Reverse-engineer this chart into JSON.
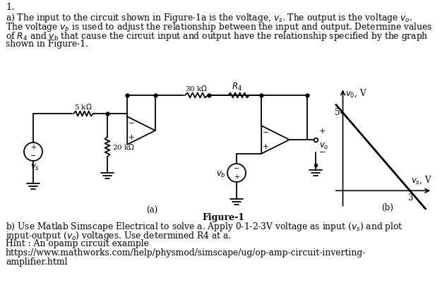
{
  "title_num": "1.",
  "para_a1": "a) The input to the circuit shown in Figure-1a is the voltage, vs. The output is the voltage vo.",
  "para_a2": "The voltage vb is used to adjust the relationship between the input and output. Determine values",
  "para_a3": "of R4 and vb that cause the circuit input and output have the relationship specified by the graph",
  "para_a4": "shown in Figure-1.",
  "figure_caption": "Figure-1",
  "para_b1": "b) Use Matlab Simscape Electrical to solve a. Apply 0-1-2-3V voltage as input (vs) and plot",
  "para_b2": "input-output (vo) voltages. Use determined R4 at a.",
  "para_hint": "Hint : An opamp circuit example",
  "para_url1": "https://www.mathworks.com/help/physmod/simscape/ug/op-amp-circuit-inverting-",
  "para_url2": "amplifier.html",
  "bg_color": "#ffffff",
  "text_color": "#000000"
}
